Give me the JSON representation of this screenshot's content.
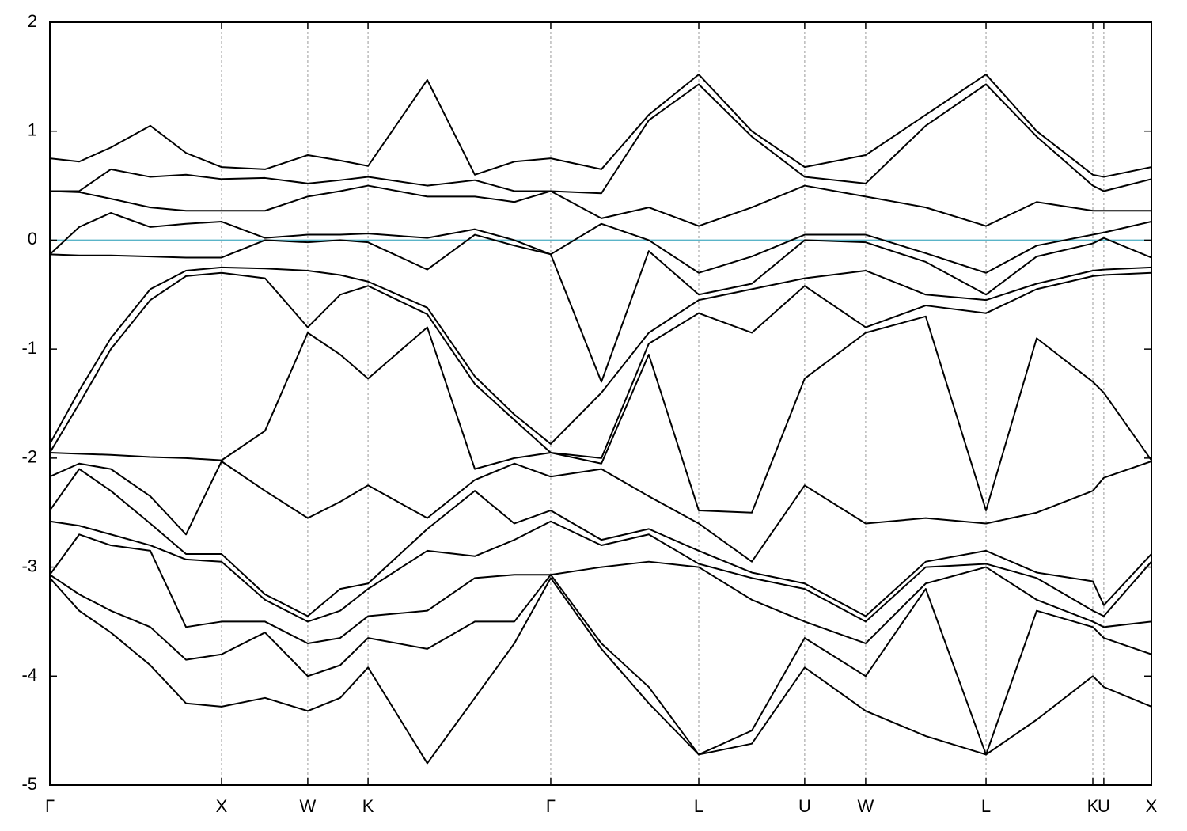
{
  "chart_data": {
    "type": "line",
    "x": [
      0,
      0.171,
      0.355,
      0.585,
      0.793,
      1.0,
      1.253,
      1.502,
      1.691,
      1.853,
      2.198,
      2.475,
      2.705,
      2.917,
      3.212,
      3.488,
      3.779,
      4.088,
      4.396,
      4.751,
      5.101,
      5.452,
      5.747,
      6.074,
      6.138,
      6.415
    ],
    "xlim": [
      0,
      6.415
    ],
    "xticks": [
      {
        "value": 0,
        "label": "Γ"
      },
      {
        "value": 1.0,
        "label": "X"
      },
      {
        "value": 1.502,
        "label": "W"
      },
      {
        "value": 1.853,
        "label": "K"
      },
      {
        "value": 2.917,
        "label": "Γ"
      },
      {
        "value": 3.779,
        "label": "L"
      },
      {
        "value": 4.396,
        "label": "U"
      },
      {
        "value": 4.751,
        "label": "W"
      },
      {
        "value": 5.452,
        "label": "L"
      },
      {
        "value": 6.074,
        "label": "K"
      },
      {
        "value": 6.138,
        "label": "U"
      },
      {
        "value": 6.415,
        "label": "X"
      }
    ],
    "ylim": [
      -5,
      2
    ],
    "yticks": [
      -5,
      -4,
      -3,
      -2,
      -1,
      0,
      1,
      2
    ],
    "grid": true,
    "hline": {
      "value": 0,
      "color": "#5ab4c8"
    },
    "series": [
      {
        "color": "#000000",
        "values": [
          0.75,
          0.72,
          0.85,
          1.05,
          0.8,
          0.67,
          0.65,
          0.78,
          0.73,
          0.68,
          1.47,
          0.6,
          0.72,
          0.75,
          0.65,
          1.15,
          1.52,
          1.0,
          0.67,
          0.78,
          1.15,
          1.52,
          1.0,
          0.6,
          0.58,
          0.67
        ]
      },
      {
        "color": "#000000",
        "values": [
          0.45,
          0.45,
          0.65,
          0.58,
          0.6,
          0.56,
          0.57,
          0.52,
          0.55,
          0.58,
          0.5,
          0.55,
          0.45,
          0.45,
          0.43,
          1.1,
          1.43,
          0.95,
          0.58,
          0.52,
          1.05,
          1.43,
          0.95,
          0.5,
          0.45,
          0.56
        ]
      },
      {
        "color": "#000000",
        "values": [
          0.45,
          0.44,
          0.38,
          0.3,
          0.27,
          0.27,
          0.27,
          0.4,
          0.45,
          0.5,
          0.4,
          0.4,
          0.35,
          0.45,
          0.2,
          0.3,
          0.13,
          0.3,
          0.5,
          0.4,
          0.3,
          0.13,
          0.35,
          0.27,
          0.27,
          0.27
        ]
      },
      {
        "color": "#000000",
        "values": [
          -0.13,
          0.12,
          0.25,
          0.12,
          0.15,
          0.17,
          0.02,
          0.05,
          0.05,
          0.06,
          0.02,
          0.1,
          0.0,
          -0.13,
          0.15,
          0.0,
          -0.3,
          -0.15,
          0.05,
          0.05,
          -0.12,
          -0.3,
          -0.05,
          0.05,
          0.07,
          0.17
        ]
      },
      {
        "color": "#000000",
        "values": [
          -0.13,
          -0.14,
          -0.14,
          -0.15,
          -0.16,
          -0.16,
          0.0,
          -0.02,
          0.0,
          -0.02,
          -0.27,
          0.05,
          -0.05,
          -0.13,
          -1.3,
          -0.1,
          -0.5,
          -0.4,
          0.0,
          -0.02,
          -0.2,
          -0.5,
          -0.15,
          -0.03,
          0.02,
          -0.16
        ]
      },
      {
        "color": "#000000",
        "values": [
          -1.87,
          -1.38,
          -0.9,
          -0.45,
          -0.28,
          -0.25,
          -0.26,
          -0.28,
          -0.32,
          -0.38,
          -0.62,
          -1.25,
          -1.6,
          -1.87,
          -1.4,
          -0.85,
          -0.55,
          -0.45,
          -0.35,
          -0.28,
          -0.5,
          -0.55,
          -0.4,
          -0.28,
          -0.27,
          -0.25
        ]
      },
      {
        "color": "#000000",
        "values": [
          -1.95,
          -1.5,
          -1.0,
          -0.55,
          -0.33,
          -0.3,
          -0.35,
          -0.8,
          -0.5,
          -0.42,
          -0.68,
          -1.32,
          -1.65,
          -1.95,
          -2.0,
          -0.95,
          -0.67,
          -0.85,
          -0.42,
          -0.8,
          -0.6,
          -0.67,
          -0.45,
          -0.33,
          -0.32,
          -0.3
        ]
      },
      {
        "color": "#000000",
        "values": [
          -1.95,
          -1.96,
          -1.97,
          -1.99,
          -2.0,
          -2.02,
          -1.75,
          -0.85,
          -1.05,
          -1.27,
          -0.8,
          -2.1,
          -2.0,
          -1.95,
          -2.05,
          -1.05,
          -2.48,
          -2.5,
          -1.27,
          -0.85,
          -0.7,
          -2.48,
          -0.9,
          -1.3,
          -1.4,
          -2.02
        ]
      },
      {
        "color": "#000000",
        "values": [
          -2.17,
          -2.05,
          -2.1,
          -2.35,
          -2.7,
          -2.03,
          -2.3,
          -2.55,
          -2.4,
          -2.25,
          -2.55,
          -2.2,
          -2.05,
          -2.17,
          -2.1,
          -2.35,
          -2.6,
          -2.95,
          -2.25,
          -2.6,
          -2.55,
          -2.6,
          -2.5,
          -2.3,
          -2.18,
          -2.03
        ]
      },
      {
        "color": "#000000",
        "values": [
          -2.48,
          -2.1,
          -2.3,
          -2.6,
          -2.88,
          -2.88,
          -3.25,
          -3.45,
          -3.2,
          -3.15,
          -2.65,
          -2.3,
          -2.6,
          -2.48,
          -2.75,
          -2.65,
          -2.85,
          -3.05,
          -3.15,
          -3.45,
          -2.95,
          -2.85,
          -3.05,
          -3.13,
          -3.35,
          -2.88
        ]
      },
      {
        "color": "#000000",
        "values": [
          -2.58,
          -2.62,
          -2.7,
          -2.8,
          -2.93,
          -2.95,
          -3.3,
          -3.5,
          -3.4,
          -3.2,
          -2.85,
          -2.9,
          -2.75,
          -2.58,
          -2.8,
          -2.7,
          -2.97,
          -3.1,
          -3.2,
          -3.5,
          -3.0,
          -2.97,
          -3.1,
          -3.4,
          -3.45,
          -2.95
        ]
      },
      {
        "color": "#000000",
        "values": [
          -3.07,
          -2.7,
          -2.8,
          -2.85,
          -3.55,
          -3.5,
          -3.5,
          -3.7,
          -3.65,
          -3.45,
          -3.4,
          -3.1,
          -3.07,
          -3.07,
          -3.0,
          -2.95,
          -3.0,
          -3.3,
          -3.5,
          -3.7,
          -3.15,
          -3.0,
          -3.3,
          -3.5,
          -3.55,
          -3.5
        ]
      },
      {
        "color": "#000000",
        "values": [
          -3.07,
          -3.25,
          -3.4,
          -3.55,
          -3.85,
          -3.8,
          -3.6,
          -4.0,
          -3.9,
          -3.65,
          -3.75,
          -3.5,
          -3.5,
          -3.07,
          -3.7,
          -4.1,
          -4.72,
          -4.5,
          -3.65,
          -4.0,
          -3.2,
          -4.72,
          -3.4,
          -3.55,
          -3.65,
          -3.8
        ]
      },
      {
        "color": "#000000",
        "values": [
          -3.1,
          -3.4,
          -3.6,
          -3.9,
          -4.25,
          -4.28,
          -4.2,
          -4.32,
          -4.2,
          -3.92,
          -4.8,
          -4.2,
          -3.7,
          -3.1,
          -3.75,
          -4.25,
          -4.72,
          -4.62,
          -3.92,
          -4.32,
          -4.55,
          -4.72,
          -4.4,
          -4.0,
          -4.1,
          -4.28
        ]
      }
    ]
  }
}
